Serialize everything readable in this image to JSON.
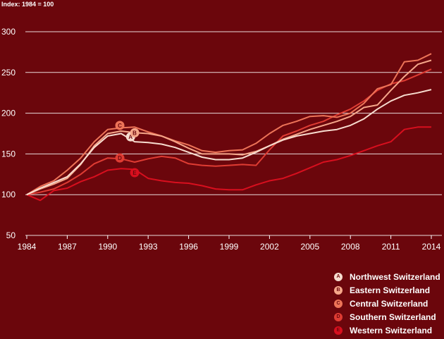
{
  "chart_data": {
    "type": "line",
    "subtitle": "Index: 1984 = 100",
    "x": [
      1984,
      1985,
      1986,
      1987,
      1988,
      1989,
      1990,
      1991,
      1992,
      1993,
      1994,
      1995,
      1996,
      1997,
      1998,
      1999,
      2000,
      2001,
      2002,
      2003,
      2004,
      2005,
      2006,
      2007,
      2008,
      2009,
      2010,
      2011,
      2012,
      2013,
      2014
    ],
    "xticks": [
      "1984",
      "1987",
      "1990",
      "1993",
      "1996",
      "1999",
      "2002",
      "2005",
      "2008",
      "2011",
      "2014"
    ],
    "yticks": [
      "50",
      "100",
      "150",
      "200",
      "250",
      "300"
    ],
    "ylim": [
      50,
      300
    ],
    "xlim": [
      1984,
      2014
    ],
    "grid": true,
    "legend_position": "bottom-right",
    "series": [
      {
        "name": "Northwest Switzerland",
        "marker": "A",
        "color": "#f7dccf",
        "values": [
          100,
          108,
          115,
          122,
          138,
          158,
          172,
          175,
          165,
          164,
          162,
          158,
          152,
          146,
          143,
          143,
          145,
          152,
          160,
          167,
          172,
          175,
          178,
          180,
          185,
          193,
          205,
          215,
          222,
          225,
          229
        ],
        "marker_x": 1991.7,
        "marker_y": 171
      },
      {
        "name": "Eastern Switzerland",
        "marker": "B",
        "color": "#f6a78a",
        "values": [
          100,
          107,
          113,
          120,
          137,
          160,
          175,
          178,
          176,
          175,
          172,
          165,
          157,
          150,
          150,
          150,
          149,
          153,
          160,
          168,
          174,
          180,
          185,
          190,
          196,
          207,
          210,
          228,
          245,
          260,
          265
        ],
        "marker_x": 1992,
        "marker_y": 176
      },
      {
        "name": "Central Switzerland",
        "marker": "C",
        "color": "#ed7458",
        "values": [
          100,
          110,
          117,
          130,
          145,
          165,
          180,
          182,
          183,
          177,
          172,
          166,
          161,
          154,
          152,
          154,
          155,
          163,
          175,
          185,
          190,
          196,
          197,
          195,
          200,
          212,
          230,
          235,
          263,
          265,
          273
        ],
        "marker_x": 1990.9,
        "marker_y": 185
      },
      {
        "name": "Southern Switzerland",
        "marker": "D",
        "color": "#df3c33",
        "values": [
          100,
          103,
          107,
          115,
          125,
          138,
          145,
          144,
          140,
          144,
          147,
          145,
          138,
          136,
          135,
          136,
          137,
          136,
          155,
          172,
          178,
          185,
          190,
          198,
          205,
          215,
          228,
          236,
          240,
          247,
          254
        ],
        "marker_x": 1990.9,
        "marker_y": 145
      },
      {
        "name": "Western Switzerland",
        "marker": "E",
        "color": "#d80f1e",
        "values": [
          100,
          93,
          105,
          108,
          116,
          122,
          130,
          132,
          131,
          120,
          117,
          115,
          114,
          111,
          107,
          106,
          106,
          112,
          117,
          120,
          126,
          133,
          140,
          143,
          148,
          154,
          160,
          165,
          180,
          183,
          183
        ],
        "marker_x": 1992,
        "marker_y": 127
      }
    ]
  }
}
